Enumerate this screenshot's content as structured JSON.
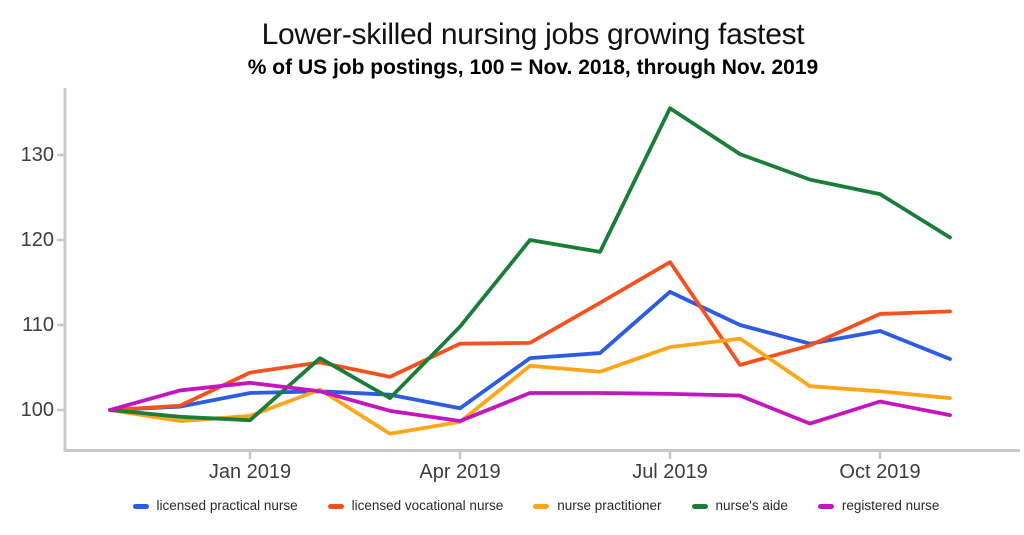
{
  "header": {
    "title": "Lower-skilled nursing jobs growing fastest",
    "subtitle": "% of US job postings, 100 = Nov. 2018, through Nov. 2019"
  },
  "chart_data": {
    "type": "line",
    "title": "Lower-skilled nursing jobs growing fastest",
    "subtitle": "% of US job postings, 100 = Nov. 2018, through Nov. 2019",
    "xlabel": "",
    "ylabel": "",
    "grid": false,
    "legend_position": "bottom",
    "axis_color": "#c8c8c8",
    "x": [
      "Nov 2018",
      "Dec 2018",
      "Jan 2019",
      "Feb 2019",
      "Mar 2019",
      "Apr 2019",
      "May 2019",
      "Jun 2019",
      "Jul 2019",
      "Aug 2019",
      "Sep 2019",
      "Oct 2019",
      "Nov 2019"
    ],
    "x_tick_labels": [
      {
        "label": "Jan 2019",
        "index": 2
      },
      {
        "label": "Apr 2019",
        "index": 5
      },
      {
        "label": "Jul 2019",
        "index": 8
      },
      {
        "label": "Oct 2019",
        "index": 11
      }
    ],
    "y_ticks": [
      100,
      110,
      120,
      130
    ],
    "ylim": [
      95,
      138
    ],
    "series": [
      {
        "name": "licensed practical nurse",
        "color": "#2b5ce2",
        "values": [
          100,
          100.4,
          102.0,
          102.2,
          101.8,
          100.2,
          106.1,
          106.7,
          113.9,
          110.0,
          107.8,
          109.3,
          106.0
        ]
      },
      {
        "name": "licensed vocational nurse",
        "color": "#f4511e",
        "values": [
          100,
          100.5,
          104.4,
          105.6,
          103.9,
          107.8,
          107.9,
          112.6,
          117.4,
          105.3,
          107.6,
          111.3,
          111.6
        ]
      },
      {
        "name": "nurse practitioner",
        "color": "#ffa51a",
        "values": [
          100,
          98.7,
          99.3,
          102.4,
          97.2,
          98.6,
          105.2,
          104.5,
          107.4,
          108.4,
          102.8,
          102.2,
          101.4
        ]
      },
      {
        "name": "nurse's aide",
        "color": "#1b7d3a",
        "values": [
          100,
          99.2,
          98.8,
          106.1,
          101.4,
          109.8,
          120.0,
          118.6,
          135.5,
          130.1,
          127.1,
          125.4,
          120.3
        ]
      },
      {
        "name": "registered nurse",
        "color": "#c316bf",
        "values": [
          100,
          102.3,
          103.2,
          102.2,
          99.9,
          98.7,
          102.0,
          102.0,
          101.9,
          101.7,
          98.4,
          101.0,
          99.4
        ]
      }
    ]
  }
}
